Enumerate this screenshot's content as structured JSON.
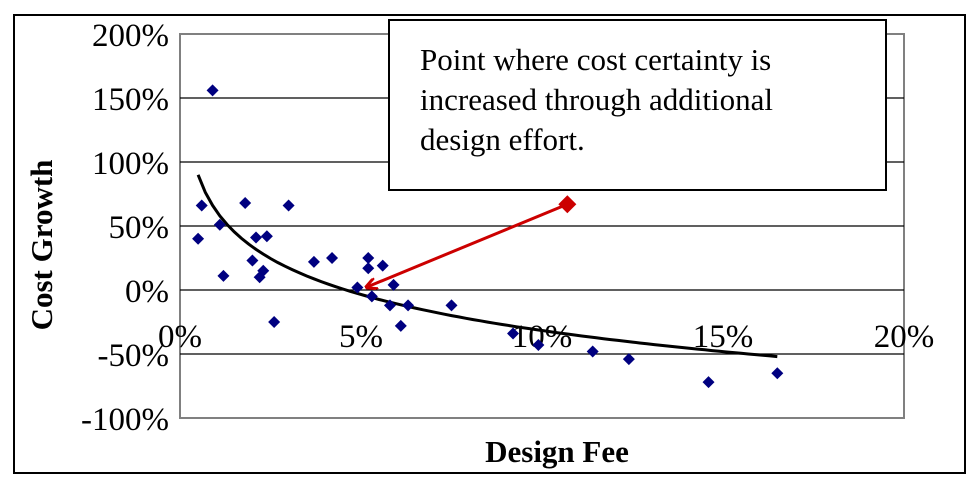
{
  "chart_data": {
    "type": "scatter",
    "xlabel": "Design Fee",
    "ylabel": "Cost Growth",
    "xlim": [
      0,
      20
    ],
    "ylim": [
      -100,
      200
    ],
    "x_ticks": [
      0,
      5,
      10,
      15,
      20
    ],
    "y_ticks": [
      200,
      150,
      100,
      50,
      0,
      -50,
      -100
    ],
    "x_tick_labels": [
      "0%",
      "5%",
      "10%",
      "15%",
      "20%"
    ],
    "y_tick_labels": [
      "200%",
      "150%",
      "100%",
      "50%",
      "0%",
      "-50%",
      "-100%"
    ],
    "grid": "horizontal",
    "marker_color": "#000080",
    "trend_color": "#000000",
    "highlight_color": "#cc0000",
    "series": [
      {
        "values": [
          [
            0.9,
            156
          ],
          [
            0.6,
            66
          ],
          [
            0.5,
            40
          ],
          [
            1.1,
            51
          ],
          [
            1.2,
            11
          ],
          [
            1.8,
            68
          ],
          [
            2.0,
            23
          ],
          [
            2.1,
            41
          ],
          [
            2.2,
            10
          ],
          [
            2.3,
            15
          ],
          [
            2.4,
            42
          ],
          [
            2.6,
            -25
          ],
          [
            3.0,
            66
          ],
          [
            3.7,
            22
          ],
          [
            4.2,
            25
          ],
          [
            4.9,
            2
          ],
          [
            5.2,
            25
          ],
          [
            5.2,
            17
          ],
          [
            5.3,
            -5
          ],
          [
            5.6,
            19
          ],
          [
            5.8,
            -12
          ],
          [
            5.9,
            4
          ],
          [
            6.1,
            -28
          ],
          [
            6.3,
            -12
          ],
          [
            7.5,
            -12
          ],
          [
            9.2,
            -34
          ],
          [
            9.9,
            -43
          ],
          [
            11.4,
            -48
          ],
          [
            12.4,
            -54
          ],
          [
            14.6,
            -72
          ],
          [
            16.5,
            -65
          ]
        ]
      }
    ],
    "trendline": {
      "type": "logarithmic",
      "x_range": [
        0.5,
        16.5
      ],
      "y_at_x_start": 90,
      "y_at_x_end": -52
    },
    "highlight_point": [
      10.7,
      67
    ],
    "annotation": {
      "lines": [
        "Point where cost certainty is",
        "increased through additional",
        "design effort."
      ],
      "arrow_to": [
        5.0,
        0
      ]
    }
  }
}
